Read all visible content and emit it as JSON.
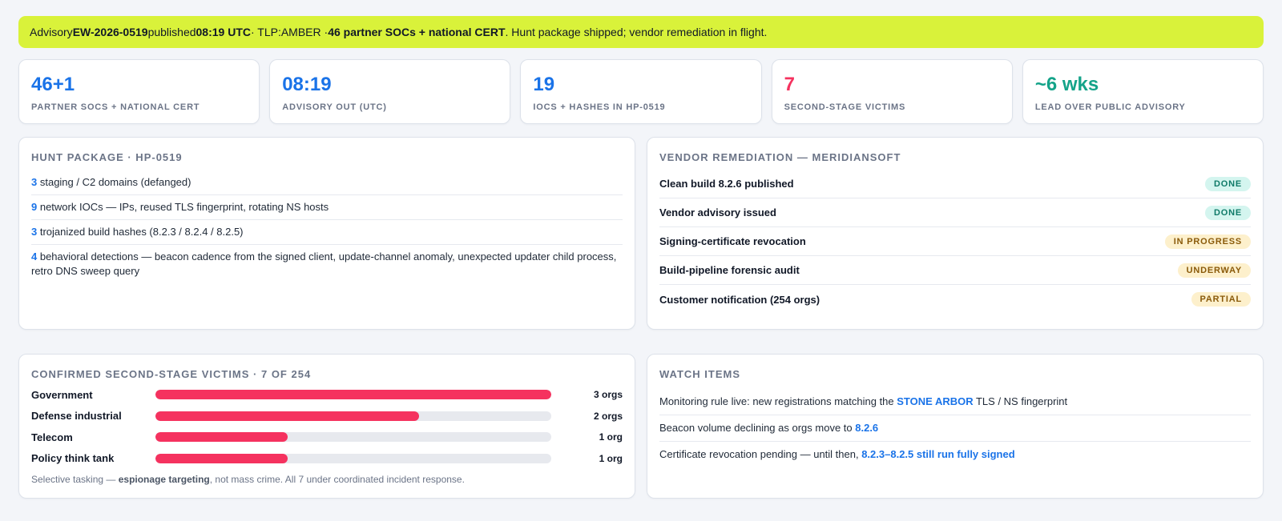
{
  "banner": {
    "t1": "Advisory ",
    "advisory_id": "EW-2026-0519",
    "t2": " published ",
    "time": "08:19 UTC",
    "t3": " · TLP:AMBER · ",
    "reach": "46 partner SOCs + national CERT",
    "t4": ". Hunt package shipped; vendor remediation in flight."
  },
  "kpis": [
    {
      "value": "46+1",
      "label": "Partner SOCs + national CERT",
      "color": "#1a73e8"
    },
    {
      "value": "08:19",
      "label": "Advisory out (UTC)",
      "color": "#1a73e8"
    },
    {
      "value": "19",
      "label": "IOCs + hashes in HP-0519",
      "color": "#1a73e8"
    },
    {
      "value": "7",
      "label": "Second-stage victims",
      "color": "#f5325f"
    },
    {
      "value": "~6 wks",
      "label": "Lead over public advisory",
      "color": "#14a389"
    }
  ],
  "hunt": {
    "title": "Hunt package · HP-0519",
    "items": [
      {
        "num": "3",
        "text": " staging / C2 domains (defanged)"
      },
      {
        "num": "9",
        "text": " network IOCs — IPs, reused TLS fingerprint, rotating NS hosts"
      },
      {
        "num": "3",
        "text": " trojanized build hashes (8.2.3 / 8.2.4 / 8.2.5)"
      },
      {
        "num": "4",
        "text": " behavioral detections — beacon cadence from the signed client, update-channel anomaly, unexpected updater child process, retro DNS sweep query"
      }
    ]
  },
  "vendor": {
    "title": "Vendor remediation — MeridianSoft",
    "items": [
      {
        "label": "Clean build 8.2.6 published",
        "status": "DONE",
        "kind": "done"
      },
      {
        "label": "Vendor advisory issued",
        "status": "DONE",
        "kind": "done"
      },
      {
        "label": "Signing-certificate revocation",
        "status": "IN PROGRESS",
        "kind": "warn"
      },
      {
        "label": "Build-pipeline forensic audit",
        "status": "UNDERWAY",
        "kind": "warn"
      },
      {
        "label": "Customer notification (254 orgs)",
        "status": "PARTIAL",
        "kind": "warn"
      }
    ]
  },
  "victims": {
    "title": "Confirmed second-stage victims · 7 of 254",
    "footnote_a": "Selective tasking — ",
    "footnote_b": "espionage targeting",
    "footnote_c": ", not mass crime. All 7 under coordinated incident response."
  },
  "chart_data": {
    "type": "bar",
    "orientation": "horizontal",
    "categories": [
      "Government",
      "Defense industrial",
      "Telecom",
      "Policy think tank"
    ],
    "values": [
      3,
      2,
      1,
      1
    ],
    "value_labels": [
      "3 orgs",
      "2 orgs",
      "1 org",
      "1 org"
    ],
    "xlim": [
      0,
      3
    ],
    "color": "#f5325f"
  },
  "watch": {
    "title": "Watch items",
    "items": [
      {
        "a": "Monitoring rule live: new registrations matching the ",
        "hl": "STONE ARBOR",
        "b": " TLS / NS fingerprint"
      },
      {
        "a": "Beacon volume declining as orgs move to ",
        "hl": "8.2.6",
        "b": ""
      },
      {
        "a": "Certificate revocation pending — until then, ",
        "hl": "8.2.3–8.2.5 still run fully signed",
        "b": ""
      }
    ]
  }
}
